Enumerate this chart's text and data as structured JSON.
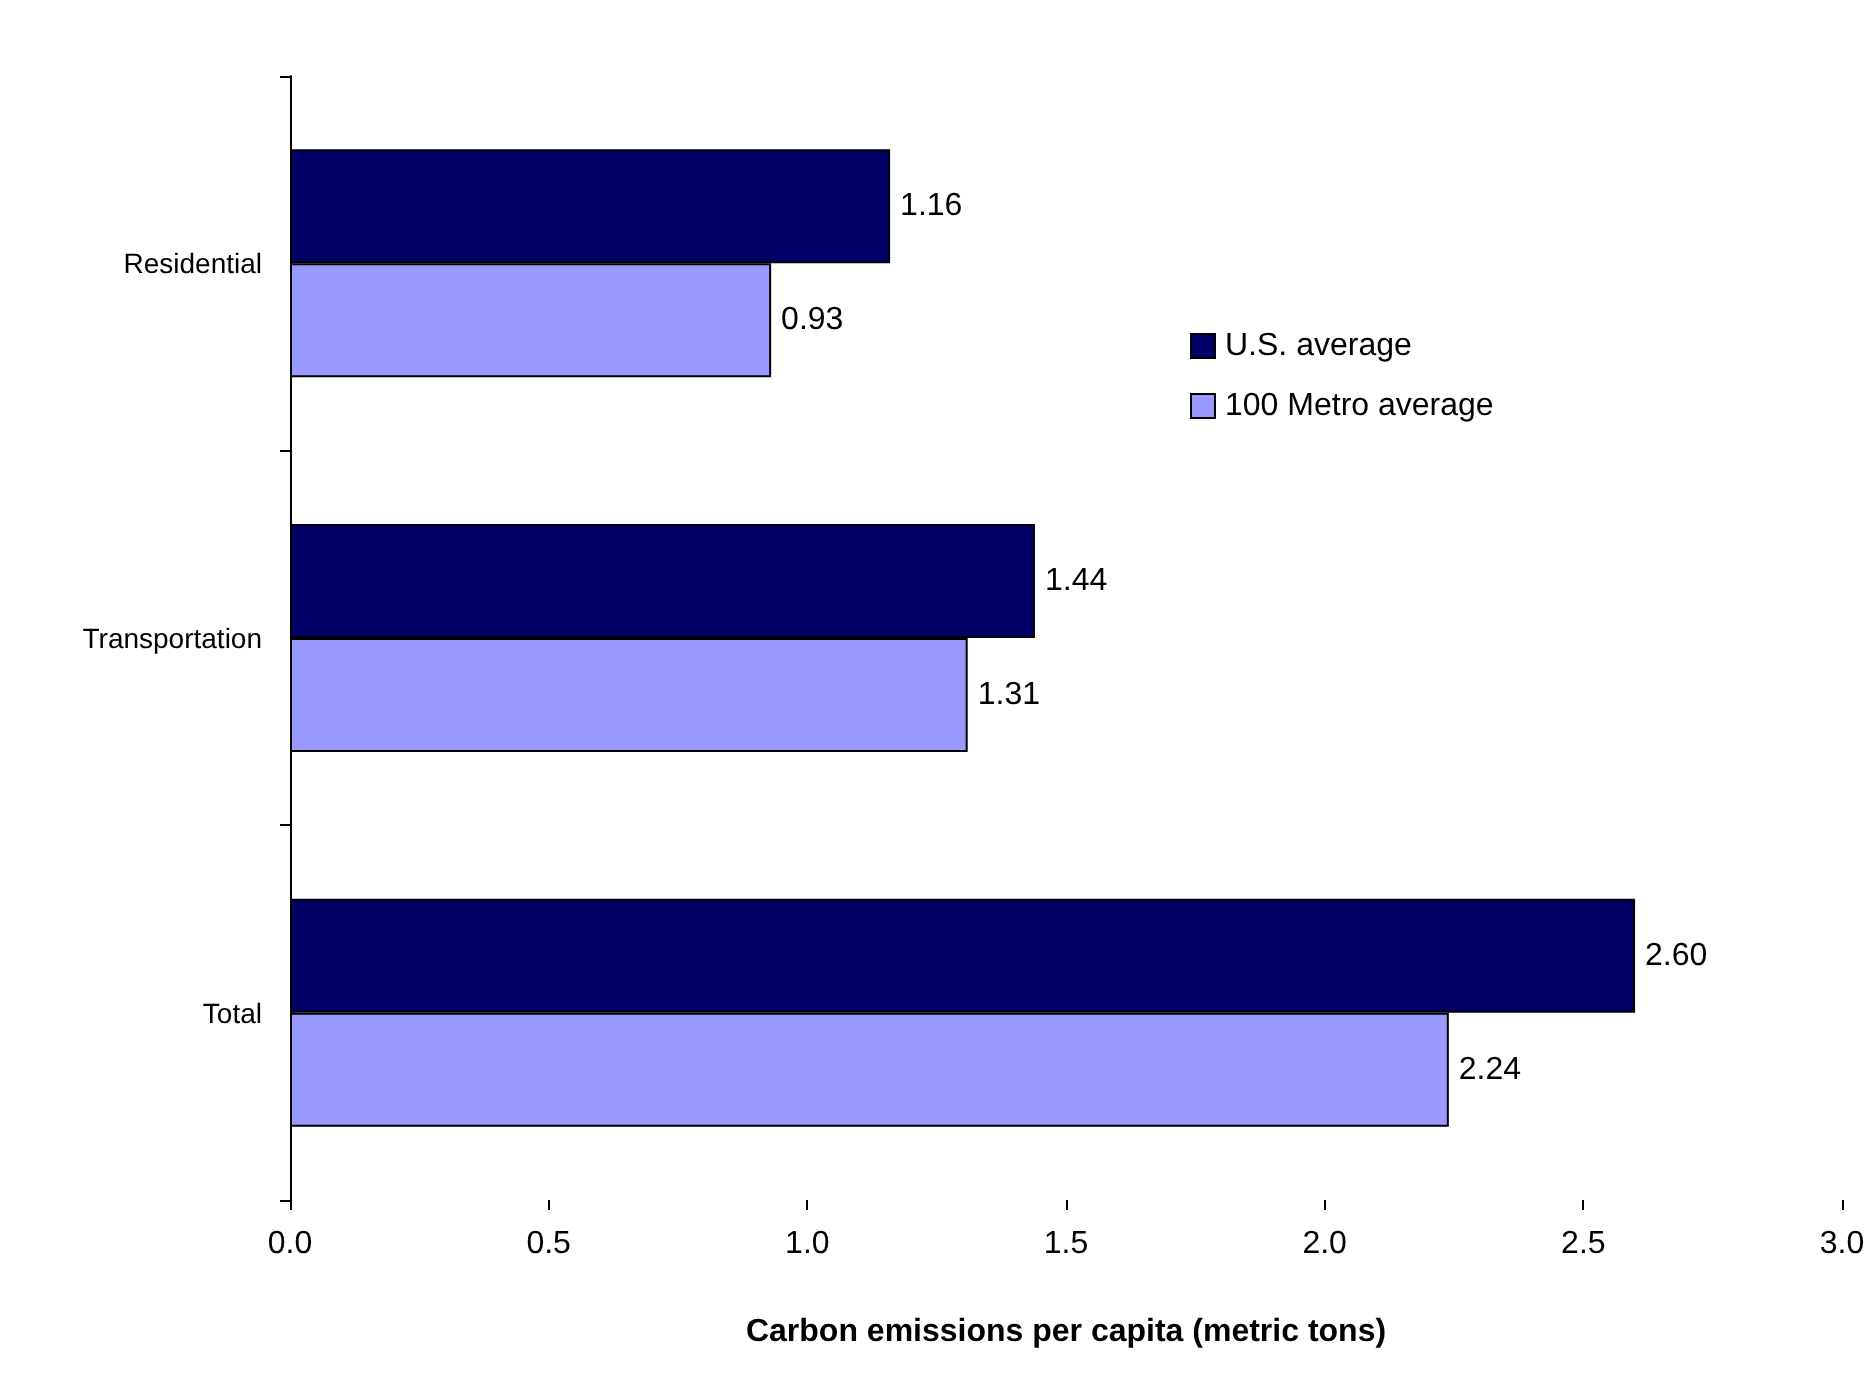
{
  "chart_data": {
    "type": "bar",
    "orientation": "horizontal",
    "categories": [
      "Residential",
      "Transportation",
      "Total"
    ],
    "series": [
      {
        "name": "U.S. average",
        "color": "#000066",
        "values": [
          1.16,
          1.44,
          2.6
        ],
        "value_labels": [
          "1.16",
          "1.44",
          "2.60"
        ]
      },
      {
        "name": "100 Metro average",
        "color": "#9999ff",
        "values": [
          0.93,
          1.31,
          2.24
        ],
        "value_labels": [
          "0.93",
          "1.31",
          "2.24"
        ]
      }
    ],
    "xlabel": "Carbon emissions per capita (metric tons)",
    "xlim": [
      0,
      3
    ],
    "xticks": [
      {
        "value": 0,
        "label": "0.0"
      },
      {
        "value": 0.5,
        "label": "0.5"
      },
      {
        "value": 1,
        "label": "1.0"
      },
      {
        "value": 1.5,
        "label": "1.5"
      },
      {
        "value": 2,
        "label": "2.0"
      },
      {
        "value": 2.5,
        "label": "2.5"
      },
      {
        "value": 3,
        "label": "3.0"
      }
    ],
    "grid": false,
    "legend": "right"
  }
}
